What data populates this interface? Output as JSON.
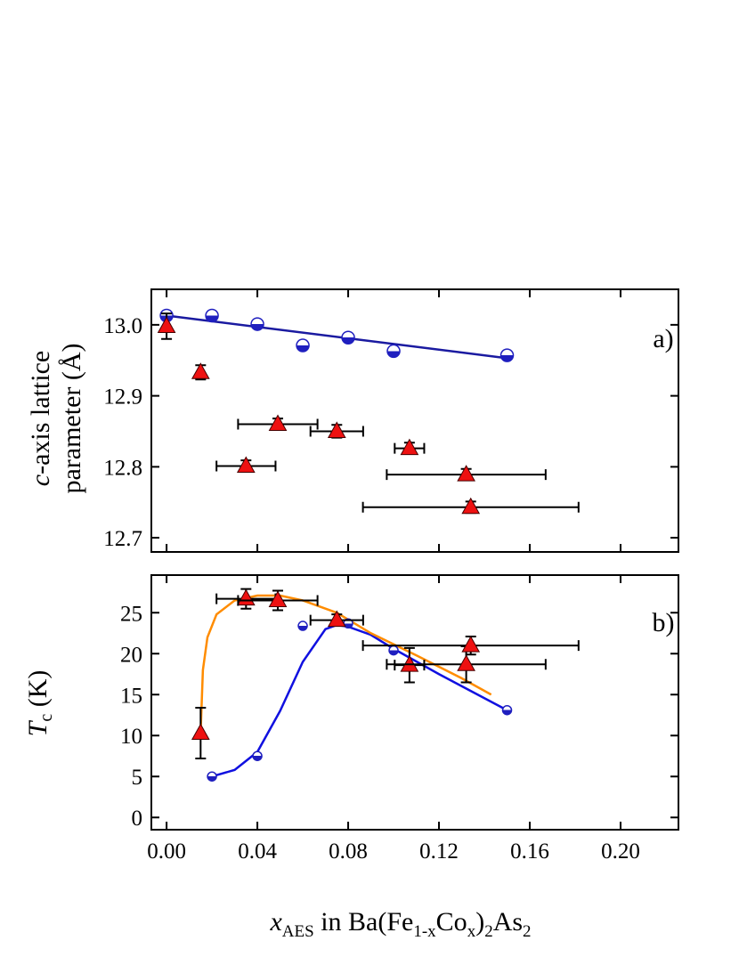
{
  "chart_data": [
    {
      "type": "scatter",
      "panel_label": "a)",
      "ylabel": {
        "italic": "c",
        "line1": "-axis lattice",
        "line2": "parameter (Å)"
      },
      "xlim": [
        -0.0067,
        0.2255
      ],
      "ylim": [
        12.68,
        13.05
      ],
      "xticks": [
        0,
        0.04,
        0.08,
        0.12,
        0.16,
        0.2
      ],
      "yticks": [
        {
          "value": 12.7,
          "label": "12.7"
        },
        {
          "value": 12.8,
          "label": "12.8"
        },
        {
          "value": 12.9,
          "label": "12.9"
        },
        {
          "value": 13.0,
          "label": "13.0"
        }
      ],
      "series": [
        {
          "marker": "half-circle",
          "color": "#1f1fbf",
          "x": [
            0,
            0.02,
            0.04,
            0.06,
            0.08,
            0.1,
            0.15
          ],
          "values": [
            13.013,
            13.013,
            13.001,
            12.971,
            12.982,
            12.963,
            12.957
          ]
        },
        {
          "marker": "triangle",
          "color": "#ee1111",
          "x": [
            0,
            0.015,
            0.035,
            0.049,
            0.075,
            0.107,
            0.132,
            0.134
          ],
          "values": [
            12.998,
            12.933,
            12.801,
            12.86,
            12.85,
            12.826,
            12.789,
            12.743
          ],
          "yerr": [
            0.018,
            0.01,
            0.008,
            0.008,
            0.009,
            0.008,
            0.008,
            0.008
          ],
          "xerr": [
            0,
            0,
            0.013,
            0.0175,
            0.0116,
            0.0065,
            0.035,
            0.0475
          ]
        }
      ],
      "lines": [
        {
          "color": "#1a1aa0",
          "x": [
            0,
            0.15
          ],
          "values": [
            13.013,
            12.953
          ]
        }
      ]
    },
    {
      "type": "scatter",
      "panel_label": "b)",
      "ylabel": {
        "italic": "T",
        "sub": "c",
        "rest": " (K)"
      },
      "xlim": [
        -0.0067,
        0.2255
      ],
      "ylim": [
        -1.5,
        29.6
      ],
      "xticks": [
        {
          "value": 0,
          "label": "0.00"
        },
        {
          "value": 0.04,
          "label": "0.04"
        },
        {
          "value": 0.08,
          "label": "0.08"
        },
        {
          "value": 0.12,
          "label": "0.12"
        },
        {
          "value": 0.16,
          "label": "0.16"
        },
        {
          "value": 0.2,
          "label": "0.20"
        }
      ],
      "yticks": [
        0,
        5,
        10,
        15,
        20,
        25
      ],
      "xlabel": [
        {
          "text": "x",
          "style": "italic"
        },
        {
          "text": "AES",
          "style": "sub"
        },
        {
          "text": " in Ba(Fe",
          "style": "normal"
        },
        {
          "text": "1-x",
          "style": "sub"
        },
        {
          "text": "Co",
          "style": "normal"
        },
        {
          "text": "x",
          "style": "sub"
        },
        {
          "text": ")",
          "style": "normal"
        },
        {
          "text": "2",
          "style": "sub"
        },
        {
          "text": "As",
          "style": "normal"
        },
        {
          "text": "2",
          "style": "sub"
        }
      ],
      "series": [
        {
          "marker": "half-circle",
          "color": "#1f1fbf",
          "x": [
            0.02,
            0.04,
            0.06,
            0.08,
            0.1,
            0.15
          ],
          "values": [
            5,
            7.5,
            23.4,
            23.7,
            20.4,
            13.1
          ]
        },
        {
          "marker": "triangle",
          "color": "#ee1111",
          "x": [
            0.015,
            0.035,
            0.049,
            0.075,
            0.107,
            0.132,
            0.134
          ],
          "values": [
            10.3,
            26.7,
            26.5,
            24.1,
            18.6,
            18.7,
            21.0
          ],
          "yerr": [
            3.1,
            1.2,
            1.2,
            0.7,
            2.1,
            2.2,
            1.1
          ],
          "xerr": [
            0,
            0.013,
            0.0175,
            0.0116,
            0.0065,
            0.035,
            0.0475
          ]
        }
      ],
      "lines": [
        {
          "color": "#1010e0",
          "x": [
            0.02,
            0.03,
            0.04,
            0.05,
            0.06,
            0.07,
            0.075,
            0.08,
            0.09,
            0.1,
            0.12,
            0.15
          ],
          "values": [
            5,
            5.8,
            8,
            13,
            19,
            23,
            23.5,
            23.3,
            22.3,
            20.6,
            17.5,
            13.1
          ]
        },
        {
          "color": "#ff8c00",
          "x": [
            0.015,
            0.016,
            0.018,
            0.022,
            0.03,
            0.04,
            0.05,
            0.06,
            0.075,
            0.09,
            0.11,
            0.13,
            0.143
          ],
          "values": [
            10.3,
            18,
            22,
            24.8,
            26.5,
            27.1,
            27.1,
            26.5,
            25,
            22.5,
            19.8,
            17,
            15
          ]
        }
      ]
    }
  ]
}
